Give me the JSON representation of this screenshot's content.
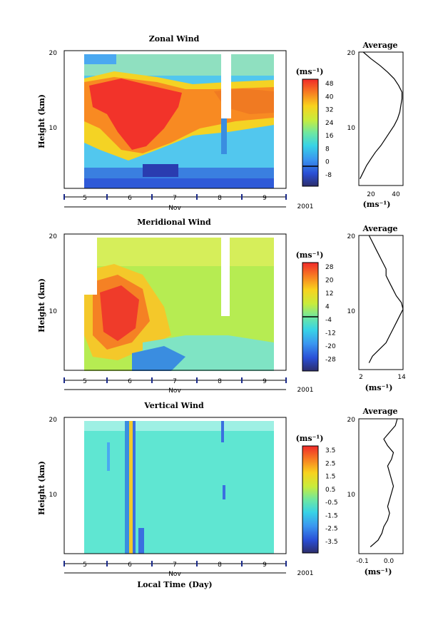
{
  "year_label": "2001",
  "x_axis_title": "Local Time (Day)",
  "month_label": "Nov",
  "panels": [
    {
      "title": "Zonal Wind",
      "ylabel": "Height (km)",
      "unit": "(ms⁻¹)",
      "cbar_ticks": [
        "48",
        "40",
        "32",
        "24",
        "16",
        "8",
        "0",
        "-8"
      ],
      "avg_title": "Average",
      "avg_xlabel": "(ms⁻¹)",
      "avg_xticks": [
        "20",
        "40"
      ],
      "y_ticks": [
        "20",
        "10"
      ]
    },
    {
      "title": "Meridional Wind",
      "ylabel": "Height (km)",
      "unit": "(ms⁻¹)",
      "cbar_ticks": [
        "28",
        "20",
        "12",
        "4",
        "-4",
        "-12",
        "-20",
        "-28"
      ],
      "avg_title": "Average",
      "avg_xlabel": "(ms⁻¹)",
      "avg_xticks": [
        "2",
        "14"
      ],
      "y_ticks": [
        "20",
        "10"
      ]
    },
    {
      "title": "Vertical Wind",
      "ylabel": "Height (km)",
      "unit": "(ms⁻¹)",
      "cbar_ticks": [
        "3.5",
        "2.5",
        "1.5",
        "0.5",
        "-0.5",
        "-1.5",
        "-2.5",
        "-3.5"
      ],
      "avg_title": "Average",
      "avg_xlabel": "(ms⁻¹)",
      "avg_xticks": [
        "-0.1",
        "0.0"
      ],
      "y_ticks": [
        "20",
        "10"
      ]
    }
  ],
  "chart_data": [
    {
      "type": "heatmap",
      "title": "Zonal Wind",
      "x_day_ticks": [
        "5",
        "6",
        "7",
        "8",
        "9"
      ],
      "ylabel": "Height (km)",
      "ylim": [
        0,
        20
      ],
      "colorbar_range": [
        -8,
        52
      ],
      "profile": {
        "height": [
          1,
          2,
          3,
          4,
          5,
          6,
          7,
          8,
          9,
          10,
          11,
          12,
          13,
          14,
          15,
          16,
          17,
          18,
          19,
          20
        ],
        "value": [
          6,
          9,
          12,
          16,
          20,
          25,
          29,
          33,
          37,
          40,
          42,
          43,
          44,
          44,
          41,
          37,
          31,
          24,
          16,
          9
        ],
        "xlim": [
          5,
          45
        ]
      }
    },
    {
      "type": "heatmap",
      "title": "Meridional Wind",
      "x_day_ticks": [
        "5",
        "6",
        "7",
        "8",
        "9"
      ],
      "ylabel": "Height (km)",
      "ylim": [
        0,
        20
      ],
      "colorbar_range": [
        -32,
        32
      ],
      "profile": {
        "height": [
          1,
          2,
          3,
          4,
          5,
          6,
          7,
          8,
          9,
          10,
          11,
          12,
          13,
          14,
          15,
          16,
          17,
          18,
          19,
          20
        ],
        "value": [
          4,
          5,
          7,
          9,
          10,
          11,
          12,
          13,
          14,
          13.5,
          12,
          11,
          10,
          9,
          9,
          8,
          7,
          6,
          5,
          4
        ],
        "xlim": [
          1,
          14
        ]
      }
    },
    {
      "type": "heatmap",
      "title": "Vertical Wind",
      "x_day_ticks": [
        "5",
        "6",
        "7",
        "8",
        "9"
      ],
      "ylabel": "Height (km)",
      "ylim": [
        0,
        20
      ],
      "colorbar_range": [
        -4,
        4
      ],
      "profile": {
        "height": [
          1,
          2,
          3,
          4,
          5,
          6,
          7,
          8,
          9,
          10,
          11,
          12,
          13,
          14,
          15,
          16,
          17,
          18,
          19,
          20
        ],
        "value": [
          -0.09,
          -0.05,
          -0.03,
          -0.02,
          0.0,
          0.01,
          0.0,
          0.01,
          0.02,
          0.03,
          0.02,
          0.01,
          0.0,
          0.02,
          0.03,
          0.0,
          -0.02,
          0.01,
          0.04,
          0.05
        ],
        "xlim": [
          -0.15,
          0.08
        ]
      }
    }
  ]
}
